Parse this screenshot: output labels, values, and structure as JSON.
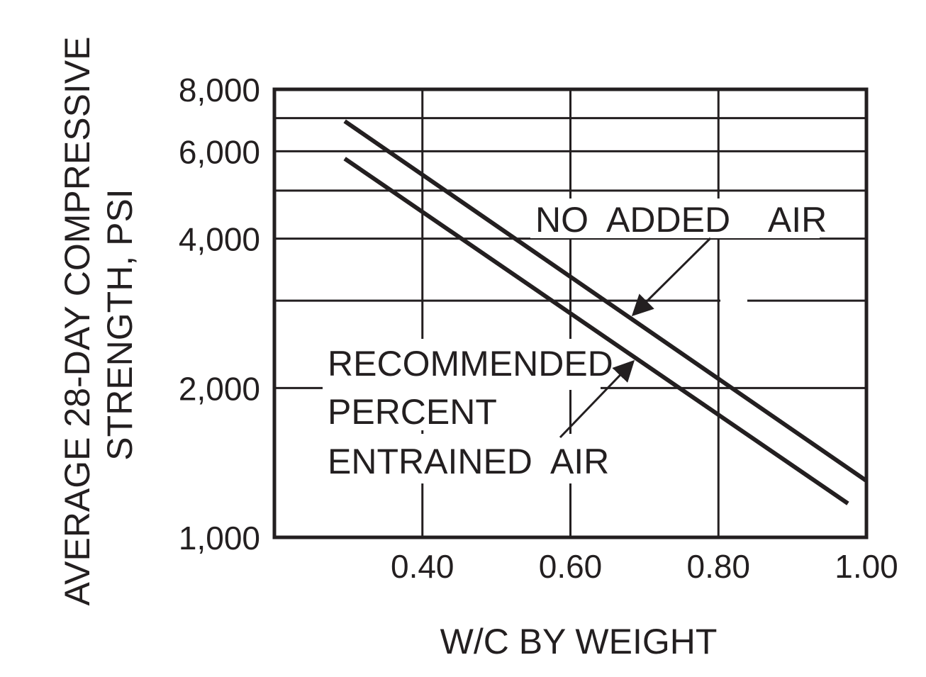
{
  "chart_data": {
    "type": "line",
    "xlabel": "W/C  BY  WEIGHT",
    "ylabel_line1": "AVERAGE  28-DAY  COMPRESSIVE",
    "ylabel_line2": "STRENGTH,  PSI",
    "xlim": [
      0.2,
      1.0
    ],
    "ylim": [
      1000,
      8000
    ],
    "y_scale": "log",
    "grid": true,
    "x_ticks": [
      0.4,
      0.6,
      0.8,
      1.0
    ],
    "x_tick_labels": [
      "0.40",
      "0.60",
      "0.80",
      "1.00"
    ],
    "y_ticks": [
      1000,
      2000,
      4000,
      6000,
      8000
    ],
    "y_tick_labels": [
      "1,000",
      "2,000",
      "4,000",
      "6,000",
      "8,000"
    ],
    "y_grid_values": [
      2000,
      3000,
      4000,
      5000,
      6000,
      7000
    ],
    "series": [
      {
        "name": "NO  ADDED    AIR",
        "x": [
          0.295,
          1.0
        ],
        "y": [
          6900,
          1300
        ]
      },
      {
        "name_lines": [
          "RECOMMENDED",
          "PERCENT",
          "ENTRAINED  AIR"
        ],
        "x": [
          0.295,
          0.975
        ],
        "y": [
          5800,
          1170
        ]
      }
    ],
    "colors": {
      "ink": "#231f20",
      "background": "#ffffff"
    }
  }
}
